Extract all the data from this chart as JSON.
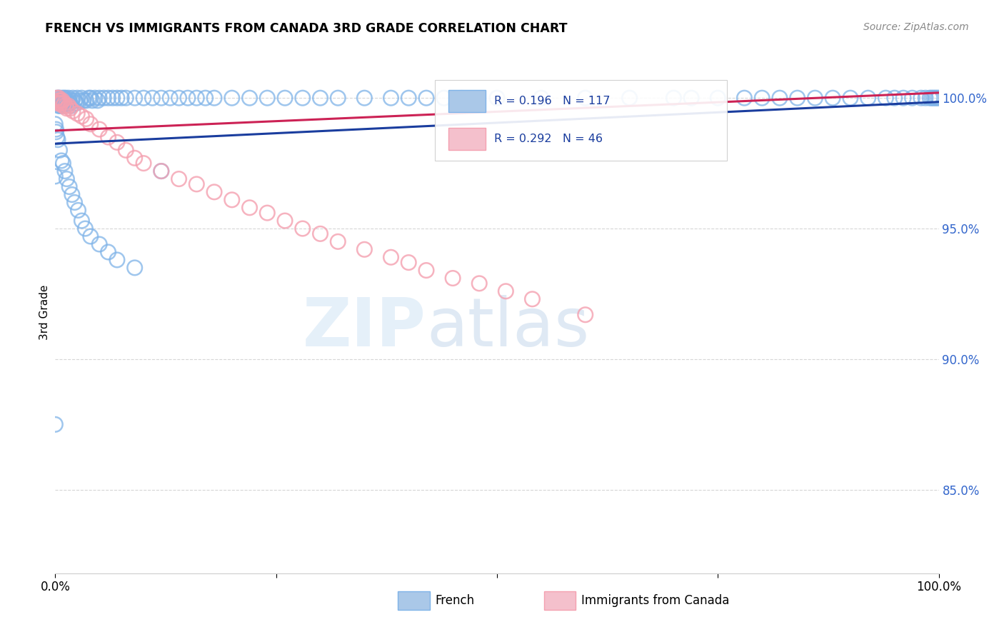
{
  "title": "FRENCH VS IMMIGRANTS FROM CANADA 3RD GRADE CORRELATION CHART",
  "source": "Source: ZipAtlas.com",
  "ylabel": "3rd Grade",
  "ytick_labels": [
    "100.0%",
    "95.0%",
    "90.0%",
    "85.0%"
  ],
  "ytick_values": [
    1.0,
    0.95,
    0.9,
    0.85
  ],
  "xlim": [
    0.0,
    1.0
  ],
  "ylim": [
    0.818,
    1.018
  ],
  "blue_R": 0.196,
  "blue_N": 117,
  "pink_R": 0.292,
  "pink_N": 46,
  "blue_scatter_color": "#7fb3e8",
  "pink_scatter_color": "#f4a0b0",
  "trendline_blue": "#1a3d9e",
  "trendline_pink": "#cc2255",
  "legend_label_blue": "French",
  "legend_label_pink": "Immigrants from Canada",
  "blue_trend_x": [
    0.0,
    1.0
  ],
  "blue_trend_y": [
    0.9825,
    0.9985
  ],
  "pink_trend_x": [
    0.0,
    1.0
  ],
  "pink_trend_y": [
    0.9875,
    1.002
  ],
  "blue_x": [
    0.002,
    0.003,
    0.004,
    0.003,
    0.004,
    0.005,
    0.006,
    0.005,
    0.007,
    0.008,
    0.009,
    0.007,
    0.008,
    0.01,
    0.011,
    0.009,
    0.012,
    0.013,
    0.014,
    0.012,
    0.015,
    0.016,
    0.017,
    0.018,
    0.02,
    0.019,
    0.022,
    0.025,
    0.024,
    0.028,
    0.03,
    0.032,
    0.035,
    0.038,
    0.04,
    0.042,
    0.045,
    0.048,
    0.05,
    0.055,
    0.06,
    0.065,
    0.07,
    0.075,
    0.08,
    0.09,
    0.1,
    0.11,
    0.12,
    0.13,
    0.14,
    0.15,
    0.16,
    0.17,
    0.18,
    0.2,
    0.22,
    0.24,
    0.26,
    0.28,
    0.3,
    0.32,
    0.35,
    0.38,
    0.4,
    0.42,
    0.44,
    0.46,
    0.5,
    0.55,
    0.6,
    0.65,
    0.7,
    0.72,
    0.75,
    0.78,
    0.8,
    0.82,
    0.84,
    0.86,
    0.88,
    0.9,
    0.92,
    0.94,
    0.95,
    0.96,
    0.97,
    0.98,
    0.985,
    0.99,
    0.992,
    0.994,
    0.996,
    0.998,
    1.0,
    0.0,
    0.001,
    0.002,
    0.001,
    0.003,
    0.005,
    0.007,
    0.009,
    0.011,
    0.013,
    0.016,
    0.019,
    0.022,
    0.026,
    0.03,
    0.034,
    0.04,
    0.05,
    0.06,
    0.07,
    0.09,
    0.12,
    0.0,
    0.0
  ],
  "blue_y": [
    1.0,
    0.999,
    1.0,
    0.998,
    0.997,
    1.0,
    0.999,
    0.997,
    0.999,
    1.0,
    0.999,
    0.998,
    0.997,
    1.0,
    0.999,
    0.998,
    1.0,
    0.999,
    0.998,
    0.997,
    1.0,
    0.999,
    0.998,
    0.997,
    1.0,
    0.999,
    0.999,
    1.0,
    0.998,
    0.999,
    1.0,
    0.999,
    0.999,
    1.0,
    1.0,
    0.999,
    1.0,
    0.999,
    1.0,
    1.0,
    1.0,
    1.0,
    1.0,
    1.0,
    1.0,
    1.0,
    1.0,
    1.0,
    1.0,
    1.0,
    1.0,
    1.0,
    1.0,
    1.0,
    1.0,
    1.0,
    1.0,
    1.0,
    1.0,
    1.0,
    1.0,
    1.0,
    1.0,
    1.0,
    1.0,
    1.0,
    1.0,
    1.0,
    1.0,
    1.0,
    1.0,
    1.0,
    1.0,
    1.0,
    1.0,
    1.0,
    1.0,
    1.0,
    1.0,
    1.0,
    1.0,
    1.0,
    1.0,
    1.0,
    1.0,
    1.0,
    1.0,
    1.0,
    1.0,
    1.0,
    1.0,
    1.0,
    1.0,
    1.0,
    1.0,
    0.99,
    0.987,
    0.985,
    0.988,
    0.984,
    0.98,
    0.976,
    0.975,
    0.972,
    0.969,
    0.966,
    0.963,
    0.96,
    0.957,
    0.953,
    0.95,
    0.947,
    0.944,
    0.941,
    0.938,
    0.935,
    0.972,
    0.97,
    0.875
  ],
  "pink_x": [
    0.002,
    0.003,
    0.003,
    0.004,
    0.005,
    0.005,
    0.006,
    0.007,
    0.008,
    0.009,
    0.01,
    0.012,
    0.013,
    0.015,
    0.017,
    0.02,
    0.025,
    0.03,
    0.035,
    0.04,
    0.05,
    0.06,
    0.07,
    0.08,
    0.09,
    0.1,
    0.12,
    0.14,
    0.16,
    0.18,
    0.2,
    0.22,
    0.24,
    0.26,
    0.28,
    0.3,
    0.32,
    0.35,
    0.38,
    0.4,
    0.42,
    0.45,
    0.48,
    0.51,
    0.54,
    0.6
  ],
  "pink_y": [
    1.0,
    0.999,
    0.998,
    1.0,
    0.999,
    0.998,
    0.999,
    0.998,
    0.999,
    0.997,
    0.998,
    0.997,
    0.996,
    0.997,
    0.996,
    0.995,
    0.994,
    0.993,
    0.992,
    0.99,
    0.988,
    0.985,
    0.983,
    0.98,
    0.977,
    0.975,
    0.972,
    0.969,
    0.967,
    0.964,
    0.961,
    0.958,
    0.956,
    0.953,
    0.95,
    0.948,
    0.945,
    0.942,
    0.939,
    0.937,
    0.934,
    0.931,
    0.929,
    0.926,
    0.923,
    0.917
  ]
}
